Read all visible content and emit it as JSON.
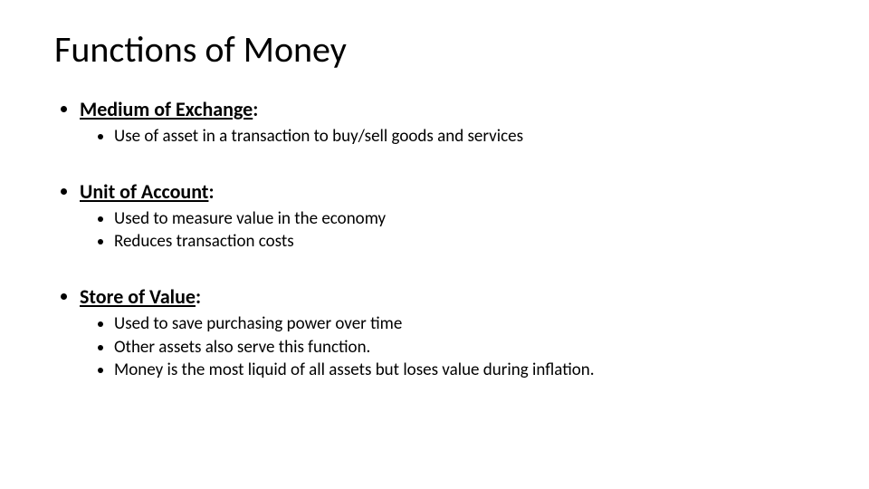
{
  "title": "Functions of Money",
  "title_fontsize": 40,
  "body_fontsize_l1": 22,
  "body_fontsize_l2": 19,
  "background_color": "#ffffff",
  "text_color": "#000000",
  "font_family": "Calibri",
  "sections": [
    {
      "heading": "Medium of Exchange",
      "heading_suffix": ":",
      "points": [
        "Use of asset in a transaction to buy/sell goods and services"
      ]
    },
    {
      "heading": "Unit of Account",
      "heading_suffix": ":",
      "points": [
        "Used to measure value in the economy",
        "Reduces transaction costs"
      ]
    },
    {
      "heading": "Store of Value",
      "heading_suffix": ":",
      "points": [
        "Used to save purchasing power over time",
        "Other assets also serve this function.",
        "Money is the most liquid of all assets but loses value during inflation."
      ]
    }
  ]
}
